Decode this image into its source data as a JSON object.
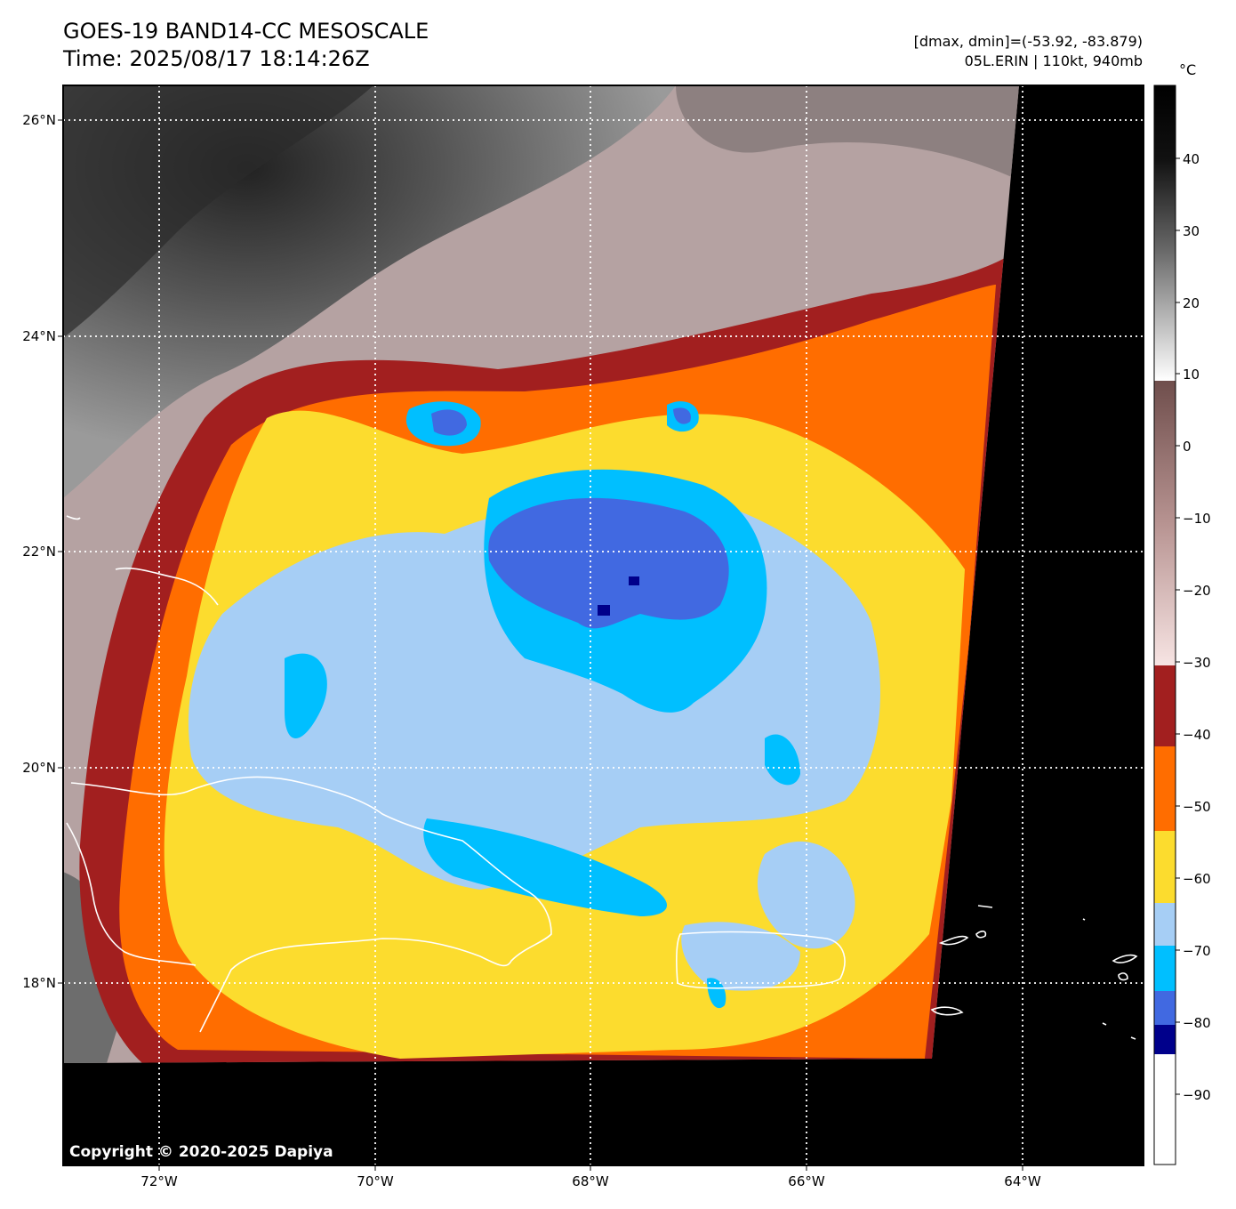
{
  "header": {
    "title_line1": "GOES-19 BAND14-CC MESOSCALE",
    "title_line2": "Time: 2025/08/17 18:14:26Z",
    "info_line1": "[dmax, dmin]=(-53.92, -83.879)",
    "info_line2": "05L.ERIN | 110kt, 940mb"
  },
  "map": {
    "lon_ticks": [
      "72°W",
      "70°W",
      "68°W",
      "66°W",
      "64°W"
    ],
    "lat_ticks": [
      "26°N",
      "24°N",
      "22°N",
      "20°N",
      "18°N"
    ],
    "copyright": "Copyright © 2020-2025 Dapiya"
  },
  "colorbar": {
    "unit": "°C",
    "tick_labels": [
      "40",
      "30",
      "20",
      "10",
      "0",
      "−10",
      "−20",
      "−30",
      "−40",
      "−50",
      "−60",
      "−70",
      "−80",
      "−90"
    ],
    "bands": [
      {
        "color": "#ffffff",
        "label": "< -84"
      },
      {
        "color": "#00008b",
        "label": "-84 to -80"
      },
      {
        "color": "#4169e1",
        "label": "-80 to -76"
      },
      {
        "color": "#00bfff",
        "label": "-76 to -70"
      },
      {
        "color": "#a6cef5",
        "label": "-70 to -60"
      },
      {
        "color": "#fcdc2e",
        "label": "-60 to -50"
      },
      {
        "color": "#ff6d00",
        "label": "-50 to -39"
      },
      {
        "color": "#a21f1f",
        "label": "-39 to -32"
      }
    ]
  },
  "storm": {
    "name": "05L.ERIN",
    "intensity": "110kt",
    "pressure": "940mb"
  }
}
